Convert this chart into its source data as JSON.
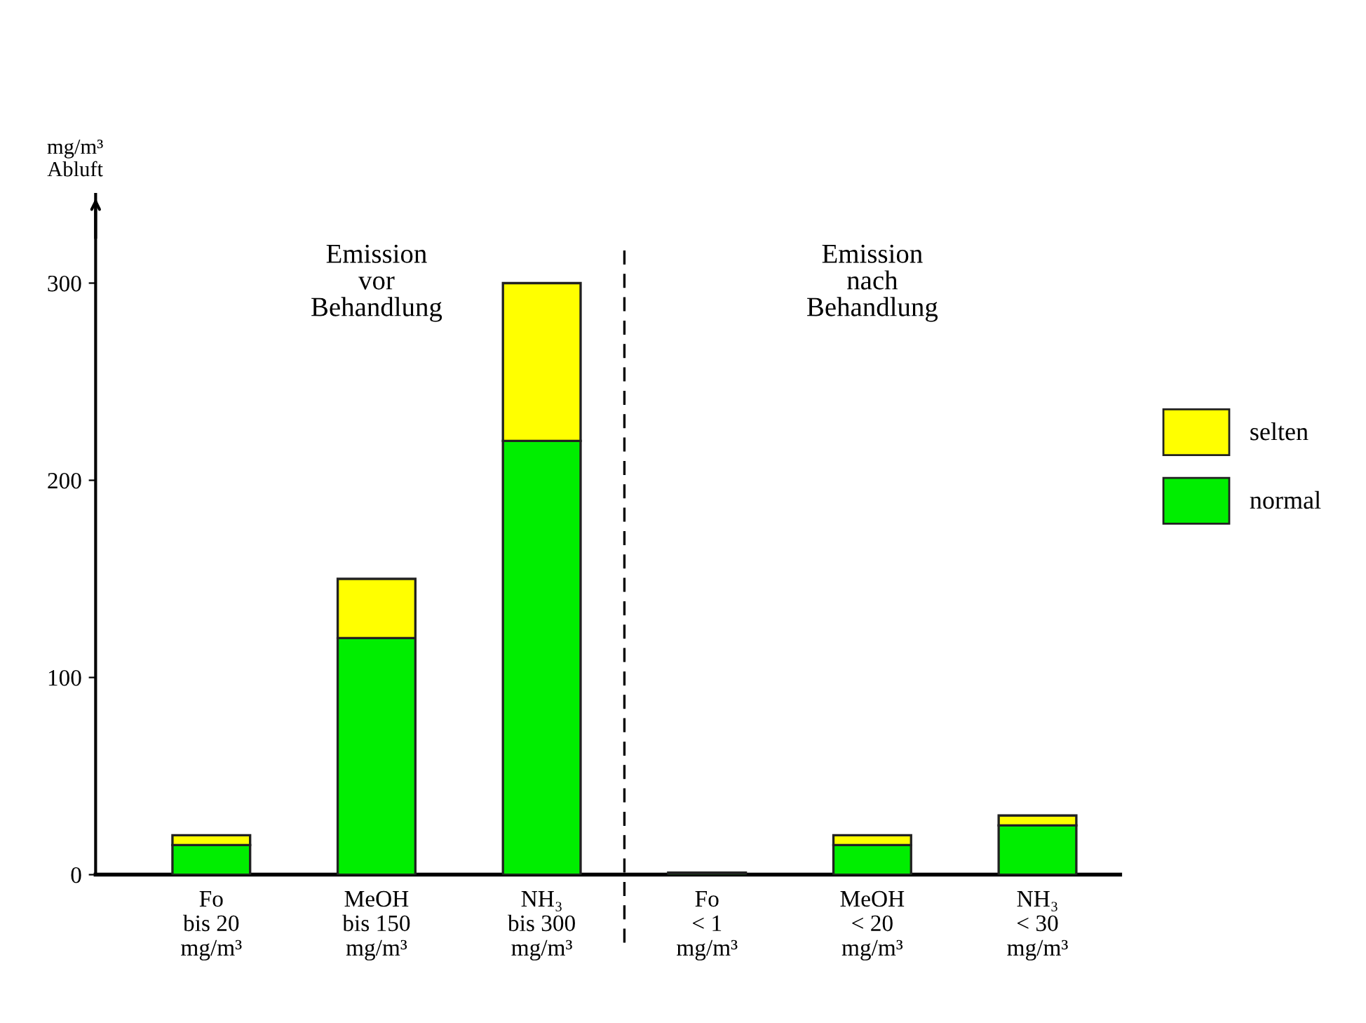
{
  "chart_data": {
    "type": "bar",
    "stacked": true,
    "ylabel": "mg/m³\nAbluft",
    "categories": [
      "Fo\nbis 20\nmg/m³",
      "MeOH\nbis 150\nmg/m³",
      "NH₃\nbis 300\nmg/m³",
      "Fo\n< 1\nmg/m³",
      "MeOH\n< 20\nmg/m³",
      "NH₃\n< 30\nmg/m³"
    ],
    "series": [
      {
        "name": "normal",
        "color": "#00ee00",
        "values": [
          15,
          120,
          220,
          1,
          15,
          25
        ]
      },
      {
        "name": "selten",
        "color": "#ffff00",
        "values": [
          5,
          30,
          80,
          null,
          5,
          5
        ]
      }
    ],
    "ylim": [
      0,
      345
    ],
    "yticks": [
      0,
      100,
      200,
      300
    ],
    "annotations": [
      "Emission\nvor\nBehandlung",
      "Emission\nnach\nBehandlung"
    ],
    "legend": "right",
    "grid": false
  }
}
